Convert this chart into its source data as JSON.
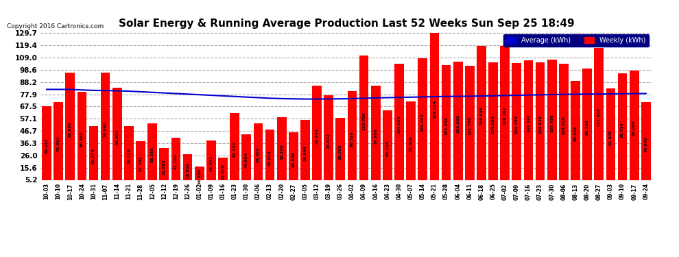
{
  "title": "Solar Energy & Running Average Production Last 52 Weeks Sun Sep 25 18:49",
  "copyright": "Copyright 2016 Cartronics.com",
  "bar_color": "#ff0000",
  "avg_line_color": "#0000cc",
  "bg_color": "#ffffff",
  "plot_bg_color": "#ffffff",
  "grid_color": "#aaaaaa",
  "yticks": [
    5.2,
    15.6,
    26.0,
    36.3,
    46.7,
    57.1,
    67.5,
    77.9,
    88.2,
    98.6,
    109.0,
    119.4,
    129.7
  ],
  "dates": [
    "10-03",
    "10-10",
    "10-17",
    "10-24",
    "10-31",
    "11-07",
    "11-14",
    "11-21",
    "11-28",
    "12-05",
    "12-12",
    "12-19",
    "12-26",
    "01-02",
    "01-09",
    "01-16",
    "01-23",
    "01-30",
    "02-06",
    "02-13",
    "02-20",
    "02-27",
    "03-05",
    "03-12",
    "03-19",
    "03-26",
    "04-02",
    "04-09",
    "04-16",
    "04-23",
    "04-30",
    "05-07",
    "05-14",
    "05-21",
    "05-28",
    "06-04",
    "06-11",
    "06-18",
    "06-25",
    "07-02",
    "07-09",
    "07-16",
    "07-23",
    "07-30",
    "08-06",
    "08-13",
    "08-20",
    "08-27",
    "09-03",
    "09-10",
    "09-17",
    "09-24"
  ],
  "weekly": [
    68.012,
    71.394,
    95.954,
    80.102,
    50.574,
    96.0,
    83.552,
    50.728,
    37.792,
    53.21,
    32.062,
    41.102,
    26.932,
    16.534,
    38.442,
    23.878,
    62.12,
    44.064,
    53.072,
    48.024,
    58.15,
    45.536,
    55.944,
    84.944,
    76.872,
    58.008,
    80.31,
    110.79,
    84.906,
    64.118,
    104.058,
    71.806,
    108.442,
    129.734,
    102.358,
    105.668,
    101.766,
    119.098,
    104.668,
    119.102,
    104.456,
    106.592,
    104.816,
    107.456,
    103.816,
    89.036,
    99.726,
    117.426,
    82.806,
    95.714,
    98.04,
    70.94
  ],
  "running_avg": [
    82.0,
    82.0,
    82.0,
    81.5,
    81.2,
    81.0,
    80.8,
    80.5,
    80.0,
    79.5,
    79.0,
    78.5,
    78.0,
    77.5,
    77.0,
    76.5,
    76.0,
    75.5,
    75.0,
    74.5,
    74.2,
    74.0,
    73.8,
    73.8,
    73.9,
    74.0,
    74.2,
    74.5,
    74.8,
    75.0,
    75.2,
    75.4,
    75.6,
    75.8,
    76.0,
    76.1,
    76.2,
    76.4,
    76.6,
    76.8,
    77.0,
    77.2,
    77.4,
    77.6,
    77.8,
    77.9,
    78.0,
    78.1,
    78.2,
    78.3,
    78.4,
    78.5
  ]
}
